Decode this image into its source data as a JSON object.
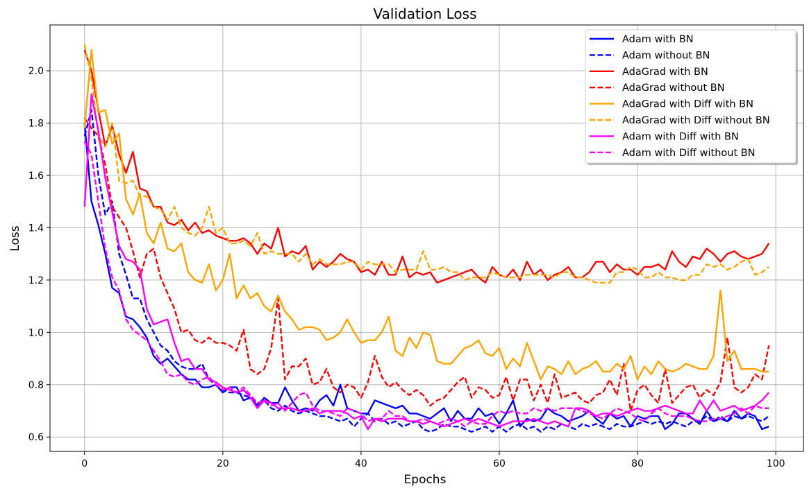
{
  "chart_data": {
    "type": "line",
    "title": "Validation Loss",
    "xlabel": "Epochs",
    "ylabel": "Loss",
    "xlim": [
      -5,
      104
    ],
    "ylim": [
      0.545,
      2.175
    ],
    "x_ticks": [
      0,
      20,
      40,
      60,
      80,
      100
    ],
    "y_ticks": [
      0.6,
      0.8,
      1.0,
      1.2,
      1.4,
      1.6,
      1.8,
      2.0
    ],
    "x_tick_labels": [
      "0",
      "20",
      "40",
      "60",
      "80",
      "100"
    ],
    "y_tick_labels": [
      "0.6",
      "0.8",
      "1.0",
      "1.2",
      "1.4",
      "1.6",
      "1.8",
      "2.0"
    ],
    "grid": true,
    "legend_position": "top-right",
    "series": [
      {
        "name": "Adam with BN",
        "color": "#0000ff",
        "dash": "solid",
        "values": [
          1.8,
          1.5,
          1.41,
          1.3,
          1.17,
          1.15,
          1.06,
          1.05,
          1.02,
          0.98,
          0.91,
          0.88,
          0.9,
          0.87,
          0.84,
          0.82,
          0.82,
          0.79,
          0.79,
          0.8,
          0.77,
          0.79,
          0.79,
          0.74,
          0.75,
          0.72,
          0.75,
          0.73,
          0.73,
          0.79,
          0.74,
          0.7,
          0.71,
          0.7,
          0.74,
          0.76,
          0.72,
          0.8,
          0.71,
          0.7,
          0.69,
          0.69,
          0.74,
          0.73,
          0.72,
          0.71,
          0.72,
          0.69,
          0.69,
          0.68,
          0.67,
          0.69,
          0.71,
          0.66,
          0.7,
          0.67,
          0.67,
          0.71,
          0.68,
          0.69,
          0.65,
          0.69,
          0.74,
          0.64,
          0.67,
          0.66,
          0.67,
          0.71,
          0.69,
          0.68,
          0.66,
          0.67,
          0.68,
          0.7,
          0.67,
          0.65,
          0.69,
          0.67,
          0.68,
          0.64,
          0.68,
          0.67,
          0.68,
          0.68,
          0.63,
          0.65,
          0.69,
          0.69,
          0.67,
          0.65,
          0.7,
          0.66,
          0.67,
          0.66,
          0.7,
          0.67,
          0.69,
          0.68,
          0.63,
          0.64
        ]
      },
      {
        "name": "Adam without BN",
        "color": "#0000ff",
        "dash": "dashed",
        "values": [
          1.75,
          1.85,
          1.6,
          1.45,
          1.5,
          1.3,
          1.22,
          1.13,
          1.13,
          1.05,
          1.0,
          0.95,
          0.93,
          0.89,
          0.87,
          0.86,
          0.86,
          0.88,
          0.82,
          0.8,
          0.78,
          0.77,
          0.77,
          0.76,
          0.75,
          0.73,
          0.74,
          0.71,
          0.7,
          0.72,
          0.7,
          0.69,
          0.7,
          0.69,
          0.68,
          0.68,
          0.67,
          0.66,
          0.67,
          0.64,
          0.67,
          0.69,
          0.66,
          0.67,
          0.65,
          0.66,
          0.64,
          0.65,
          0.66,
          0.63,
          0.62,
          0.63,
          0.65,
          0.64,
          0.64,
          0.63,
          0.62,
          0.63,
          0.64,
          0.62,
          0.64,
          0.62,
          0.64,
          0.65,
          0.63,
          0.64,
          0.62,
          0.64,
          0.63,
          0.65,
          0.64,
          0.63,
          0.65,
          0.64,
          0.65,
          0.64,
          0.63,
          0.65,
          0.64,
          0.64,
          0.65,
          0.66,
          0.65,
          0.66,
          0.65,
          0.66,
          0.65,
          0.64,
          0.66,
          0.66,
          0.68,
          0.66,
          0.68,
          0.66,
          0.68,
          0.67,
          0.68,
          0.67,
          0.66,
          0.68
        ]
      },
      {
        "name": "AdaGrad with BN",
        "color": "#ff0000",
        "dash": "solid",
        "values": [
          2.08,
          2.0,
          1.85,
          1.71,
          1.79,
          1.68,
          1.61,
          1.69,
          1.55,
          1.54,
          1.48,
          1.48,
          1.42,
          1.41,
          1.43,
          1.39,
          1.42,
          1.38,
          1.39,
          1.37,
          1.36,
          1.35,
          1.35,
          1.36,
          1.34,
          1.3,
          1.34,
          1.32,
          1.4,
          1.29,
          1.31,
          1.3,
          1.33,
          1.24,
          1.27,
          1.25,
          1.27,
          1.3,
          1.28,
          1.27,
          1.23,
          1.24,
          1.22,
          1.27,
          1.22,
          1.22,
          1.29,
          1.21,
          1.23,
          1.22,
          1.23,
          1.19,
          1.2,
          1.21,
          1.22,
          1.23,
          1.24,
          1.21,
          1.19,
          1.25,
          1.22,
          1.21,
          1.24,
          1.2,
          1.27,
          1.22,
          1.24,
          1.2,
          1.22,
          1.23,
          1.25,
          1.21,
          1.21,
          1.23,
          1.27,
          1.27,
          1.23,
          1.26,
          1.24,
          1.24,
          1.22,
          1.25,
          1.25,
          1.26,
          1.24,
          1.31,
          1.27,
          1.25,
          1.29,
          1.28,
          1.32,
          1.3,
          1.27,
          1.3,
          1.31,
          1.29,
          1.28,
          1.29,
          1.3,
          1.34
        ]
      },
      {
        "name": "AdaGrad without BN",
        "color": "#ff0000",
        "dash": "dashed",
        "values": [
          1.82,
          1.78,
          1.75,
          1.64,
          1.48,
          1.44,
          1.4,
          1.31,
          1.21,
          1.3,
          1.32,
          1.21,
          1.15,
          1.09,
          1.0,
          1.01,
          0.97,
          0.96,
          0.98,
          0.96,
          0.96,
          0.95,
          0.93,
          1.01,
          0.86,
          0.84,
          0.86,
          0.94,
          1.13,
          0.82,
          0.87,
          0.87,
          0.9,
          0.8,
          0.81,
          0.86,
          0.79,
          0.77,
          0.8,
          0.79,
          0.75,
          0.81,
          0.91,
          0.83,
          0.79,
          0.81,
          0.78,
          0.76,
          0.78,
          0.76,
          0.72,
          0.74,
          0.75,
          0.78,
          0.81,
          0.83,
          0.75,
          0.79,
          0.78,
          0.75,
          0.76,
          0.83,
          0.74,
          0.82,
          0.82,
          0.74,
          0.8,
          0.73,
          0.84,
          0.75,
          0.76,
          0.77,
          0.74,
          0.73,
          0.76,
          0.77,
          0.82,
          0.76,
          0.88,
          0.7,
          0.78,
          0.8,
          0.76,
          0.73,
          0.86,
          0.73,
          0.76,
          0.79,
          0.8,
          0.75,
          0.78,
          0.76,
          0.81,
          0.98,
          0.79,
          0.77,
          0.79,
          0.84,
          0.82,
          0.95
        ]
      },
      {
        "name": "AdaGrad with Diff with BN",
        "color": "#ffa500",
        "dash": "solid",
        "values": [
          1.78,
          2.08,
          1.84,
          1.85,
          1.72,
          1.76,
          1.51,
          1.45,
          1.53,
          1.38,
          1.34,
          1.42,
          1.32,
          1.31,
          1.34,
          1.23,
          1.2,
          1.19,
          1.26,
          1.16,
          1.2,
          1.3,
          1.13,
          1.18,
          1.13,
          1.15,
          1.1,
          1.08,
          1.14,
          1.08,
          1.05,
          1.01,
          1.02,
          1.02,
          1.01,
          0.97,
          0.98,
          1.0,
          1.05,
          1.0,
          0.96,
          0.97,
          0.97,
          1.0,
          1.06,
          0.93,
          0.91,
          0.98,
          0.94,
          1.0,
          0.99,
          0.89,
          0.88,
          0.88,
          0.91,
          0.94,
          0.95,
          0.97,
          0.92,
          0.91,
          0.94,
          0.86,
          0.9,
          0.87,
          0.96,
          0.89,
          0.82,
          0.87,
          0.86,
          0.84,
          0.89,
          0.84,
          0.86,
          0.87,
          0.89,
          0.85,
          0.85,
          0.88,
          0.86,
          0.91,
          0.82,
          0.87,
          0.84,
          0.89,
          0.86,
          0.85,
          0.86,
          0.88,
          0.87,
          0.86,
          0.86,
          0.91,
          1.16,
          0.89,
          0.93,
          0.86,
          0.86,
          0.86,
          0.85,
          0.85
        ]
      },
      {
        "name": "AdaGrad with Diff without BN",
        "color": "#ffa500",
        "dash": "dashed",
        "values": [
          2.1,
          1.97,
          1.75,
          1.71,
          1.8,
          1.58,
          1.57,
          1.58,
          1.52,
          1.52,
          1.48,
          1.47,
          1.43,
          1.48,
          1.4,
          1.38,
          1.37,
          1.4,
          1.48,
          1.38,
          1.4,
          1.34,
          1.34,
          1.35,
          1.33,
          1.38,
          1.3,
          1.31,
          1.3,
          1.3,
          1.3,
          1.27,
          1.3,
          1.26,
          1.28,
          1.26,
          1.26,
          1.26,
          1.27,
          1.27,
          1.24,
          1.27,
          1.26,
          1.26,
          1.26,
          1.23,
          1.24,
          1.24,
          1.24,
          1.31,
          1.24,
          1.24,
          1.25,
          1.23,
          1.23,
          1.2,
          1.21,
          1.21,
          1.21,
          1.23,
          1.22,
          1.21,
          1.21,
          1.21,
          1.22,
          1.22,
          1.22,
          1.22,
          1.21,
          1.23,
          1.23,
          1.21,
          1.21,
          1.2,
          1.19,
          1.19,
          1.19,
          1.23,
          1.23,
          1.25,
          1.24,
          1.21,
          1.21,
          1.23,
          1.21,
          1.21,
          1.2,
          1.2,
          1.22,
          1.22,
          1.26,
          1.25,
          1.26,
          1.24,
          1.25,
          1.27,
          1.28,
          1.22,
          1.23,
          1.25
        ]
      },
      {
        "name": "Adam with Diff with BN",
        "color": "#ff00ff",
        "dash": "solid",
        "values": [
          1.48,
          1.91,
          1.77,
          1.59,
          1.46,
          1.33,
          1.28,
          1.27,
          1.24,
          1.09,
          1.03,
          1.04,
          1.05,
          0.96,
          0.89,
          0.9,
          0.86,
          0.86,
          0.82,
          0.81,
          0.79,
          0.78,
          0.77,
          0.78,
          0.75,
          0.71,
          0.74,
          0.73,
          0.71,
          0.71,
          0.71,
          0.7,
          0.7,
          0.71,
          0.69,
          0.7,
          0.7,
          0.7,
          0.69,
          0.67,
          0.68,
          0.63,
          0.67,
          0.66,
          0.67,
          0.67,
          0.67,
          0.66,
          0.66,
          0.65,
          0.66,
          0.65,
          0.64,
          0.65,
          0.66,
          0.67,
          0.66,
          0.67,
          0.66,
          0.65,
          0.64,
          0.65,
          0.66,
          0.66,
          0.66,
          0.67,
          0.66,
          0.65,
          0.66,
          0.65,
          0.64,
          0.71,
          0.71,
          0.7,
          0.68,
          0.69,
          0.69,
          0.68,
          0.69,
          0.7,
          0.71,
          0.7,
          0.7,
          0.71,
          0.72,
          0.71,
          0.7,
          0.69,
          0.69,
          0.74,
          0.7,
          0.74,
          0.7,
          0.71,
          0.72,
          0.7,
          0.71,
          0.72,
          0.74,
          0.77
        ]
      },
      {
        "name": "Adam with Diff without BN",
        "color": "#ff00ff",
        "dash": "dashed",
        "values": [
          1.73,
          1.68,
          1.5,
          1.32,
          1.21,
          1.16,
          1.05,
          1.01,
          0.99,
          0.97,
          0.93,
          0.89,
          0.84,
          0.83,
          0.84,
          0.81,
          0.8,
          0.82,
          0.83,
          0.8,
          0.78,
          0.79,
          0.77,
          0.79,
          0.76,
          0.73,
          0.74,
          0.72,
          0.73,
          0.7,
          0.73,
          0.76,
          0.77,
          0.72,
          0.7,
          0.7,
          0.69,
          0.68,
          0.71,
          0.7,
          0.69,
          0.66,
          0.67,
          0.67,
          0.7,
          0.68,
          0.68,
          0.66,
          0.66,
          0.67,
          0.66,
          0.65,
          0.66,
          0.67,
          0.66,
          0.64,
          0.66,
          0.65,
          0.65,
          0.68,
          0.7,
          0.69,
          0.7,
          0.69,
          0.69,
          0.71,
          0.7,
          0.71,
          0.7,
          0.71,
          0.71,
          0.71,
          0.7,
          0.69,
          0.68,
          0.67,
          0.69,
          0.71,
          0.7,
          0.69,
          0.67,
          0.66,
          0.69,
          0.71,
          0.69,
          0.68,
          0.68,
          0.68,
          0.67,
          0.66,
          0.66,
          0.67,
          0.67,
          0.68,
          0.69,
          0.71,
          0.69,
          0.72,
          0.71,
          0.71
        ]
      }
    ]
  }
}
